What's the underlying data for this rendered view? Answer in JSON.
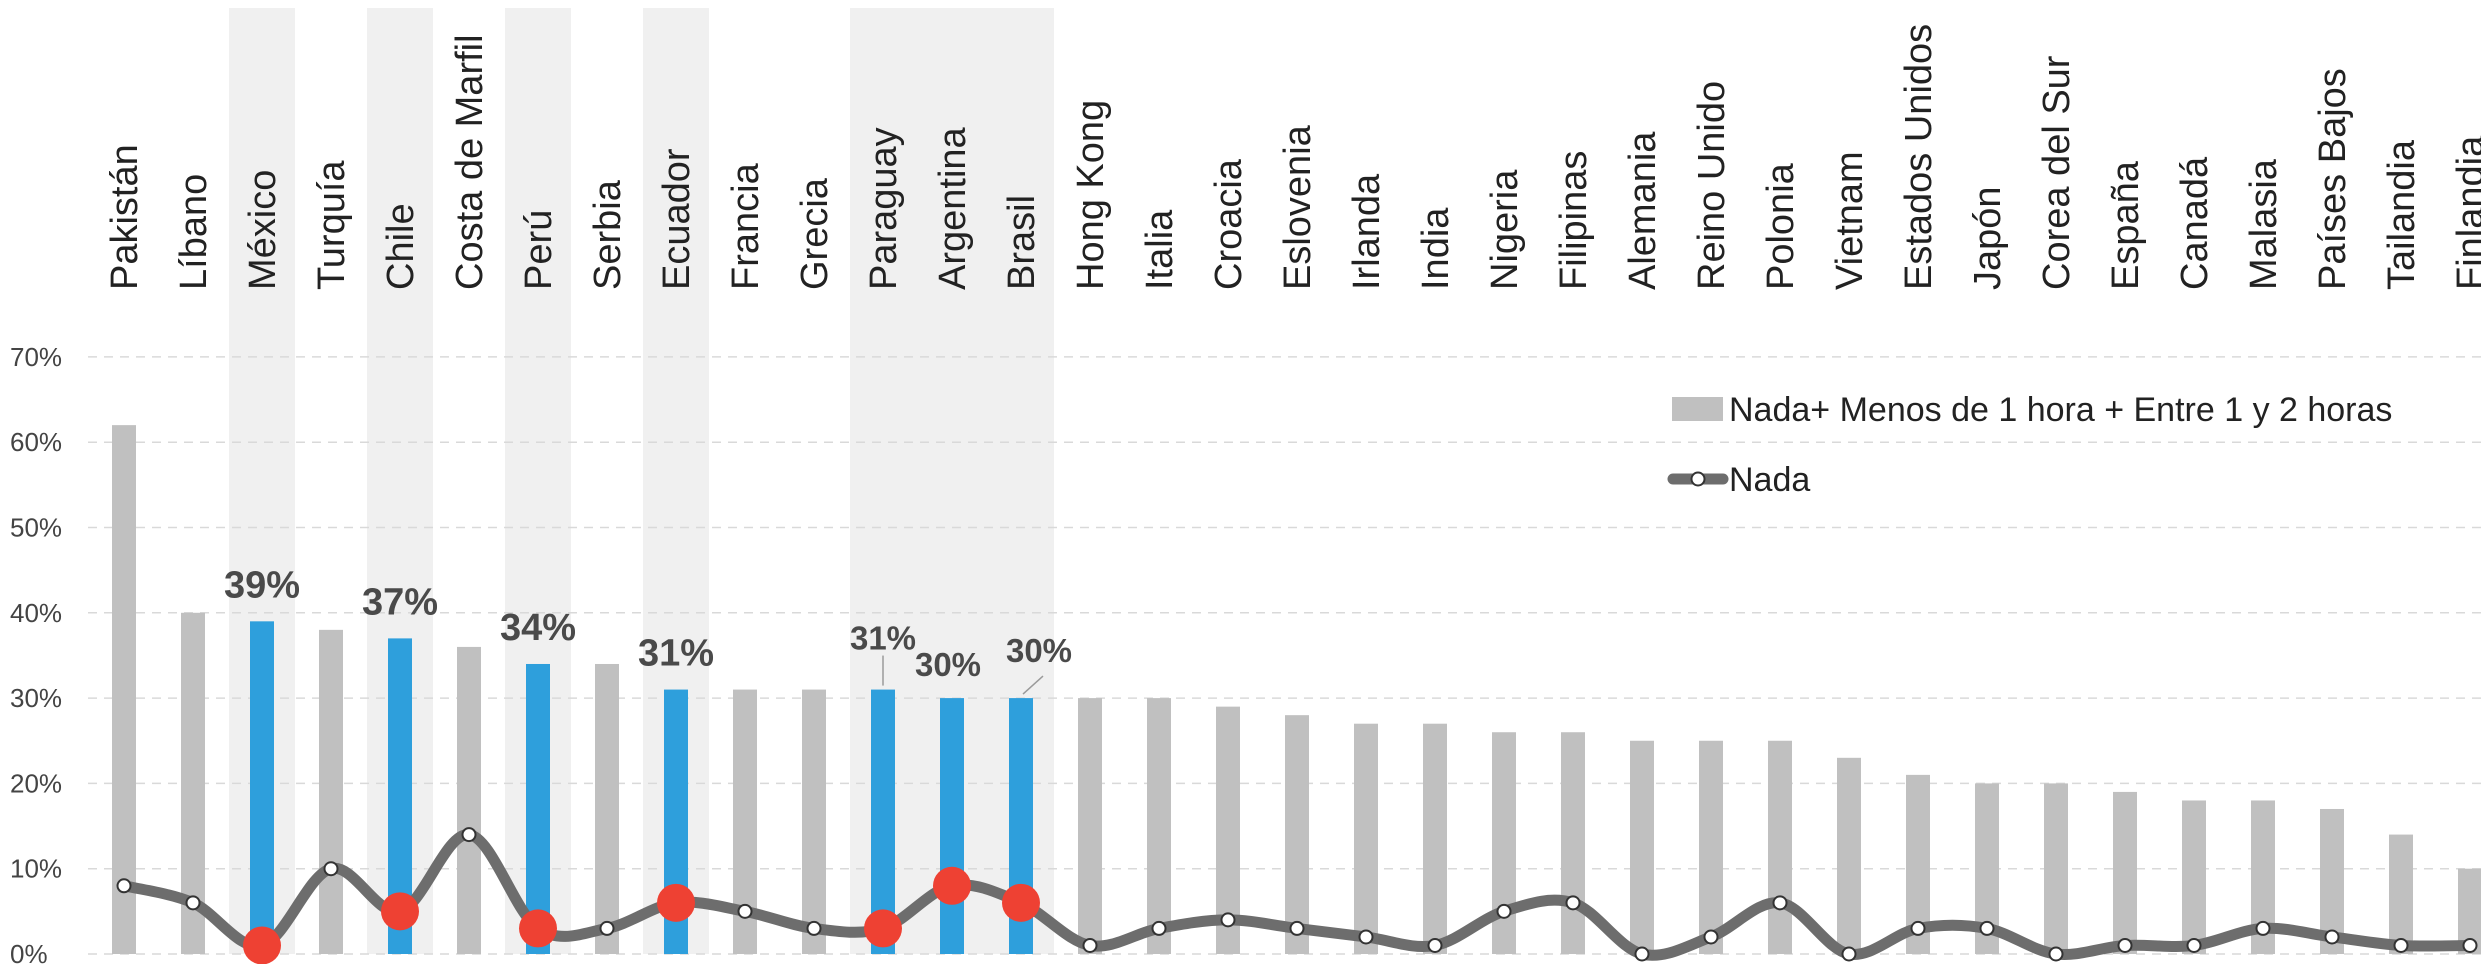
{
  "chart_data": {
    "type": "bar",
    "categories": [
      "Pakistán",
      "Líbano",
      "México",
      "Turquía",
      "Chile",
      "Costa de Marfil",
      "Perú",
      "Serbia",
      "Ecuador",
      "Francia",
      "Grecia",
      "Paraguay",
      "Argentina",
      "Brasil",
      "Hong Kong",
      "Italia",
      "Croacia",
      "Eslovenia",
      "Irlanda",
      "India",
      "Nigeria",
      "Filipinas",
      "Alemania",
      "Reino Unido",
      "Polonia",
      "Vietnam",
      "Estados Unidos",
      "Japón",
      "Corea del Sur",
      "España",
      "Canadá",
      "Malasia",
      "Países Bajos",
      "Tailandia",
      "Finlandia"
    ],
    "series": [
      {
        "name": "Nada+ Menos de 1 hora + Entre 1 y 2 horas",
        "type": "bar",
        "values": [
          62,
          40,
          39,
          38,
          37,
          36,
          34,
          34,
          31,
          31,
          31,
          31,
          30,
          30,
          30,
          30,
          29,
          28,
          27,
          27,
          26,
          26,
          25,
          25,
          25,
          23,
          21,
          20,
          20,
          19,
          18,
          18,
          17,
          14,
          10
        ]
      },
      {
        "name": "Nada",
        "type": "line",
        "values": [
          8,
          6,
          1,
          10,
          5,
          14,
          3,
          3,
          6,
          5,
          3,
          3,
          8,
          6,
          1,
          3,
          4,
          3,
          2,
          1,
          5,
          6,
          0,
          2,
          6,
          0,
          3,
          3,
          0,
          1,
          1,
          3,
          2,
          1,
          1
        ]
      }
    ],
    "highlighted": [
      "México",
      "Chile",
      "Perú",
      "Ecuador",
      "Paraguay",
      "Argentina",
      "Brasil"
    ],
    "data_labels": [
      {
        "category": "México",
        "text": "39%"
      },
      {
        "category": "Chile",
        "text": "37%"
      },
      {
        "category": "Perú",
        "text": "34%"
      },
      {
        "category": "Ecuador",
        "text": "31%"
      },
      {
        "category": "Paraguay",
        "text": "31%"
      },
      {
        "category": "Argentina",
        "text": "30%"
      },
      {
        "category": "Brasil",
        "text": "30%"
      }
    ],
    "y_ticks": [
      "0%",
      "10%",
      "20%",
      "30%",
      "40%",
      "50%",
      "60%",
      "70%"
    ],
    "ylim": [
      0,
      70
    ],
    "grid": true,
    "legend_position": "top-right",
    "colors": {
      "bar": "#c0c0c0",
      "bar_highlight": "#2e9fdc",
      "band": "#f0f0f0",
      "line": "#6d6d6d",
      "marker_highlight": "#ee4133",
      "grid": "#d9d9d9"
    }
  }
}
